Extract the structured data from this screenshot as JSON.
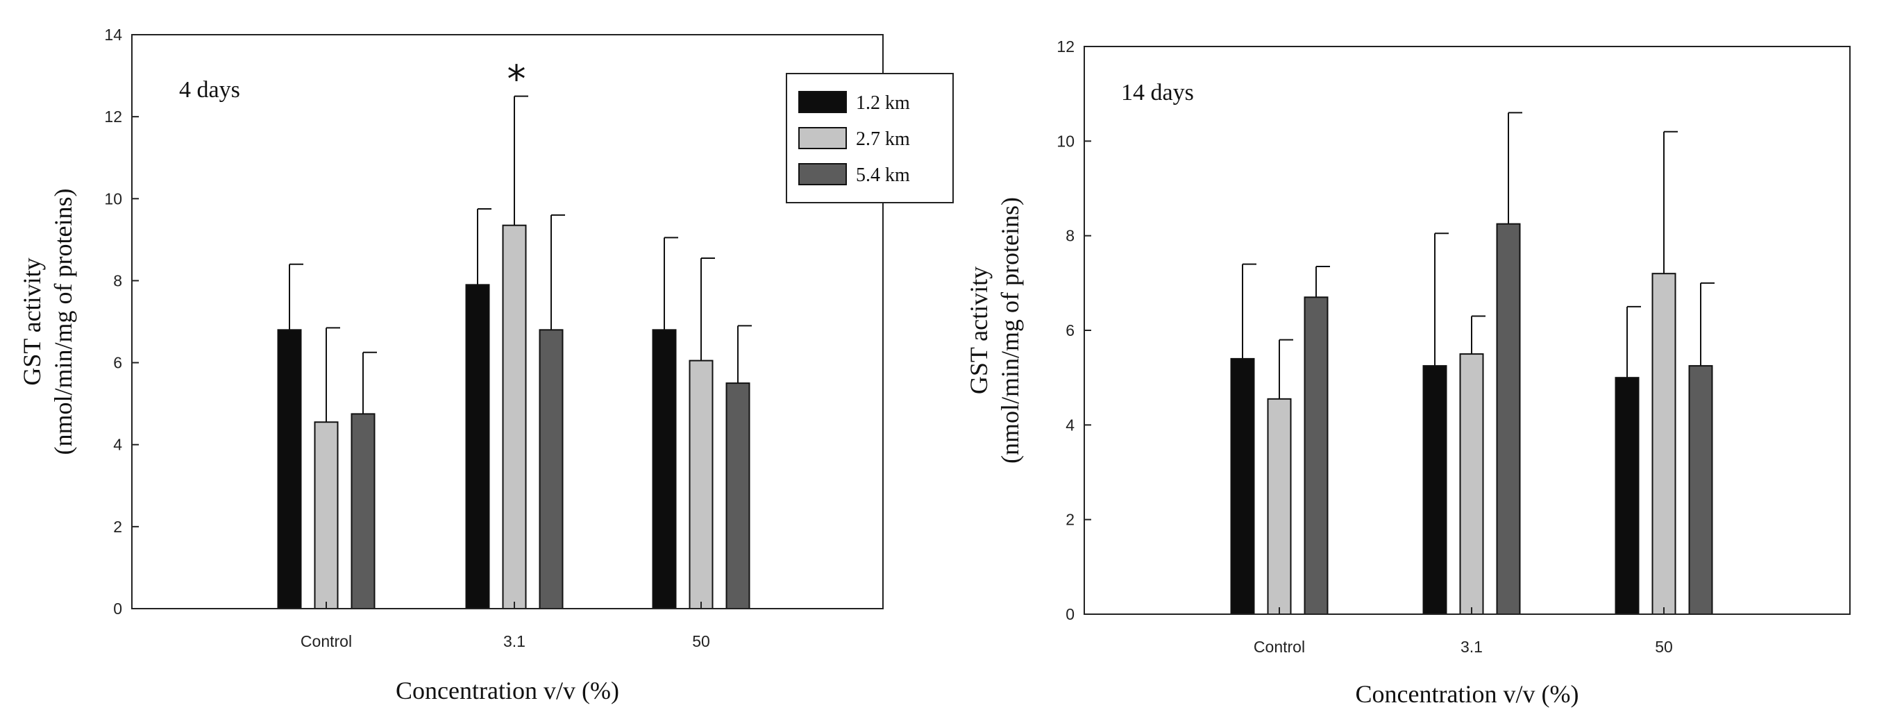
{
  "chart_data": [
    {
      "type": "bar",
      "title": "",
      "panel_label": "4 days",
      "xlabel": "Concentration v/v (%)",
      "ylabel": "GST activity",
      "ylabel_sub": "(nmol/min/mg of proteins)",
      "categories": [
        "Control",
        "3.1",
        "50"
      ],
      "ylim": [
        0,
        14
      ],
      "yticks": [
        0,
        2,
        4,
        6,
        8,
        10,
        12,
        14
      ],
      "ytick_labels": [
        "0",
        "2",
        "4",
        "6",
        "8",
        "10",
        "12",
        "14"
      ],
      "series": [
        {
          "name": "1.2 km",
          "values": [
            6.8,
            7.9,
            6.8
          ],
          "errors": [
            1.6,
            1.85,
            2.25
          ]
        },
        {
          "name": "2.7 km",
          "values": [
            4.55,
            9.35,
            6.05
          ],
          "errors": [
            2.3,
            3.15,
            2.5
          ]
        },
        {
          "name": "5.4 km",
          "values": [
            4.75,
            6.8,
            5.5
          ],
          "errors": [
            1.5,
            2.8,
            1.4
          ]
        }
      ],
      "annotations": [
        {
          "text": "*",
          "category": "3.1",
          "series": "2.7 km"
        }
      ],
      "legend": {
        "placement": "top-right",
        "entries": [
          "1.2 km",
          "2.7 km",
          "5.4 km"
        ]
      }
    },
    {
      "type": "bar",
      "title": "",
      "panel_label": "14 days",
      "xlabel": "Concentration v/v (%)",
      "ylabel": "GST activity",
      "ylabel_sub": "(nmol/min/mg of proteins)",
      "categories": [
        "Control",
        "3.1",
        "50"
      ],
      "ylim": [
        0,
        12
      ],
      "yticks": [
        0,
        2,
        4,
        6,
        8,
        10,
        12
      ],
      "ytick_labels": [
        "0",
        "2",
        "4",
        "6",
        "8",
        "10",
        "12"
      ],
      "series": [
        {
          "name": "1.2 km",
          "values": [
            5.4,
            5.25,
            5.0
          ],
          "errors": [
            2.0,
            2.8,
            1.5
          ]
        },
        {
          "name": "2.7 km",
          "values": [
            4.55,
            5.5,
            7.2
          ],
          "errors": [
            1.25,
            0.8,
            3.0
          ]
        },
        {
          "name": "5.4 km",
          "values": [
            6.7,
            8.25,
            5.25
          ],
          "errors": [
            0.65,
            2.35,
            1.75
          ]
        }
      ],
      "annotations": [],
      "legend": null
    }
  ],
  "colors": {
    "1.2 km": "#0d0d0d",
    "2.7 km": "#c4c4c4",
    "5.4 km": "#5c5c5c",
    "axis": "#222222"
  }
}
